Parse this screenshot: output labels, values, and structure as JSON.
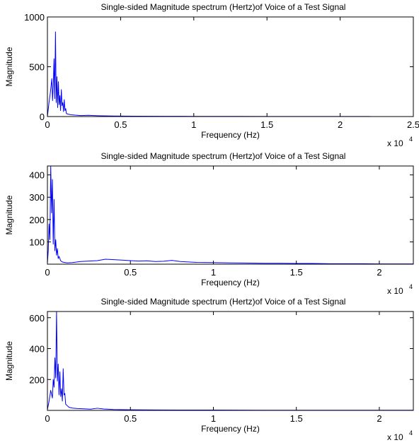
{
  "chart_data": [
    {
      "type": "line",
      "title": "Single-sided Magnitude spectrum (Hertz)of  Voice of a Test Signal",
      "xlabel": "Frequency (Hz)",
      "ylabel": "Magnitude",
      "xlim": [
        0,
        25000
      ],
      "ylim": [
        0,
        1000
      ],
      "xticks": [
        0,
        5000,
        10000,
        15000,
        20000,
        25000
      ],
      "xtick_labels": [
        "0",
        "0.5",
        "1",
        "1.5",
        "2",
        "2.5"
      ],
      "yticks": [
        0,
        500,
        1000
      ],
      "ytick_labels": [
        "0",
        "500",
        "1000"
      ],
      "x_exponent_label": "x 10",
      "x_exponent_power": "4",
      "grid": false,
      "color": "#0000ff",
      "series": [
        {
          "x": [
            0,
            100,
            200,
            300,
            350,
            400,
            450,
            500,
            550,
            600,
            650,
            700,
            750,
            800,
            850,
            900,
            950,
            1000,
            1050,
            1100,
            1150,
            1200,
            1250,
            1300,
            1400,
            1600,
            1900,
            2300,
            2800,
            3500,
            4500,
            6000,
            8000,
            10000,
            13000,
            16000,
            19000,
            22050
          ],
          "y": [
            0,
            130,
            240,
            380,
            160,
            310,
            580,
            180,
            850,
            140,
            400,
            90,
            350,
            120,
            210,
            60,
            270,
            110,
            140,
            50,
            170,
            60,
            80,
            30,
            25,
            18,
            14,
            10,
            12,
            8,
            5,
            4,
            3,
            2,
            2,
            1,
            1,
            1
          ]
        }
      ]
    },
    {
      "type": "line",
      "title": "Single-sided Magnitude spectrum (Hertz)of  Voice of a Test Signal",
      "xlabel": "Frequency (Hz)",
      "ylabel": "Magnitude",
      "xlim": [
        0,
        22050
      ],
      "ylim": [
        0,
        440
      ],
      "xticks": [
        0,
        5000,
        10000,
        15000,
        20000
      ],
      "xtick_labels": [
        "0",
        "0.5",
        "1",
        "1.5",
        "2"
      ],
      "yticks": [
        100,
        200,
        300,
        400
      ],
      "ytick_labels": [
        "100",
        "200",
        "300",
        "400"
      ],
      "x_exponent_label": "x 10",
      "x_exponent_power": "4",
      "grid": false,
      "color": "#0000ff",
      "series": [
        {
          "x": [
            0,
            50,
            100,
            150,
            200,
            250,
            300,
            350,
            400,
            450,
            500,
            550,
            600,
            650,
            700,
            800,
            900,
            1000,
            1200,
            1500,
            2000,
            2500,
            3000,
            3500,
            4000,
            4500,
            5000,
            5500,
            6000,
            6500,
            7000,
            7500,
            8000,
            8500,
            9000,
            10000,
            11000,
            12000,
            13000,
            14000,
            15000,
            16000,
            17000,
            18000,
            19000,
            20000,
            21000,
            22050
          ],
          "y": [
            5,
            60,
            180,
            110,
            440,
            230,
            380,
            90,
            290,
            60,
            110,
            40,
            70,
            25,
            35,
            15,
            10,
            8,
            6,
            7,
            12,
            14,
            16,
            22,
            20,
            18,
            16,
            14,
            15,
            12,
            13,
            17,
            12,
            10,
            8,
            7,
            6,
            5,
            4,
            4,
            3,
            3,
            2,
            2,
            2,
            1,
            1,
            1
          ]
        }
      ]
    },
    {
      "type": "line",
      "title": "Single-sided Magnitude spectrum (Hertz)of  Voice of a Test Signal",
      "xlabel": "Frequency (Hz)",
      "ylabel": "Magnitude",
      "xlim": [
        0,
        22050
      ],
      "ylim": [
        0,
        640
      ],
      "xticks": [
        0,
        5000,
        10000,
        15000,
        20000
      ],
      "xtick_labels": [
        "0",
        "0.5",
        "1",
        "1.5",
        "2"
      ],
      "yticks": [
        200,
        400,
        600
      ],
      "ytick_labels": [
        "200",
        "400",
        "600"
      ],
      "x_exponent_label": "x 10",
      "x_exponent_power": "4",
      "grid": false,
      "color": "#0000ff",
      "series": [
        {
          "x": [
            0,
            100,
            200,
            300,
            350,
            400,
            450,
            500,
            550,
            600,
            650,
            700,
            750,
            800,
            850,
            900,
            950,
            1000,
            1050,
            1100,
            1200,
            1300,
            1500,
            1800,
            2200,
            2600,
            3000,
            3400,
            4000,
            5000,
            6500,
            8000,
            10000,
            13000,
            16000,
            19000,
            22050
          ],
          "y": [
            5,
            60,
            130,
            80,
            200,
            150,
            340,
            210,
            640,
            190,
            300,
            100,
            250,
            90,
            140,
            60,
            270,
            100,
            110,
            40,
            30,
            20,
            15,
            12,
            10,
            8,
            14,
            9,
            6,
            4,
            3,
            2,
            2,
            1,
            1,
            1,
            1
          ]
        }
      ]
    }
  ]
}
